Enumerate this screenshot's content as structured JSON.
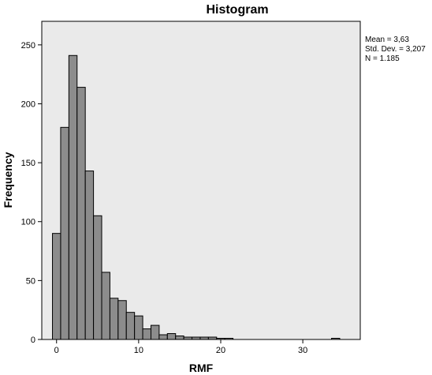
{
  "chart_data": {
    "type": "bar",
    "title": "Histogram",
    "xlabel": "RMF",
    "ylabel": "Frequency",
    "x_ticks": [
      0,
      10,
      20,
      30
    ],
    "y_ticks": [
      0,
      50,
      100,
      150,
      200,
      250
    ],
    "xlim": [
      -1.8,
      37
    ],
    "ylim": [
      0,
      270
    ],
    "bin_width": 1,
    "bins": [
      {
        "x": 0,
        "value": 90
      },
      {
        "x": 1,
        "value": 180
      },
      {
        "x": 2,
        "value": 241
      },
      {
        "x": 3,
        "value": 214
      },
      {
        "x": 4,
        "value": 143
      },
      {
        "x": 5,
        "value": 105
      },
      {
        "x": 6,
        "value": 57
      },
      {
        "x": 7,
        "value": 35
      },
      {
        "x": 8,
        "value": 33
      },
      {
        "x": 9,
        "value": 23
      },
      {
        "x": 10,
        "value": 20
      },
      {
        "x": 11,
        "value": 9
      },
      {
        "x": 12,
        "value": 12
      },
      {
        "x": 13,
        "value": 4
      },
      {
        "x": 14,
        "value": 5
      },
      {
        "x": 15,
        "value": 3
      },
      {
        "x": 16,
        "value": 2
      },
      {
        "x": 17,
        "value": 2
      },
      {
        "x": 18,
        "value": 2
      },
      {
        "x": 19,
        "value": 2
      },
      {
        "x": 20,
        "value": 1
      },
      {
        "x": 21,
        "value": 1
      },
      {
        "x": 34,
        "value": 1
      }
    ],
    "stats": {
      "mean": "Mean = 3,63",
      "std_dev": "Std. Dev. = 3,207",
      "n": "N = 1.185"
    },
    "colors": {
      "bar_fill": "#8c8c8c",
      "bar_stroke": "#000000",
      "plot_background": "#eaeaea"
    },
    "grid": false,
    "legend": "none"
  }
}
